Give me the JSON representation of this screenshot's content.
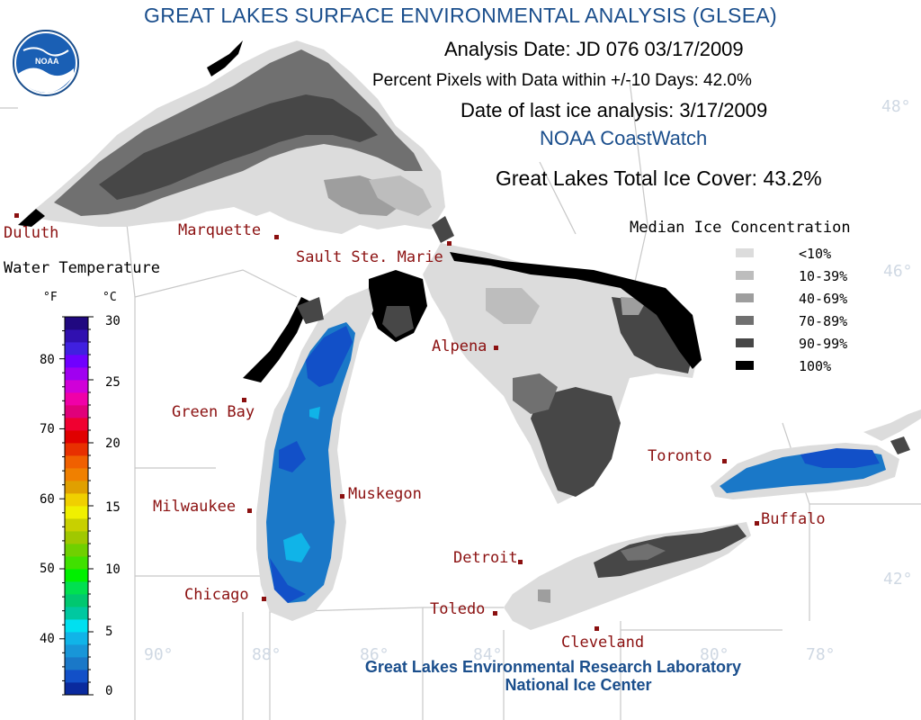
{
  "header": {
    "title": "GREAT LAKES SURFACE ENVIRONMENTAL ANALYSIS (GLSEA)",
    "analysis_date": "Analysis Date:  JD 076 03/17/2009",
    "percent_pixels": "Percent Pixels with Data within +/-10 Days:  42.0%",
    "last_ice_analysis": "Date of last ice analysis: 3/17/2009",
    "coastwatch": "NOAA CoastWatch",
    "total_ice_cover": "Great Lakes Total Ice Cover:  43.2%"
  },
  "logo": {
    "text": "NOAA"
  },
  "colors": {
    "title_blue": "#1a4e8c",
    "city_red": "#8b1010",
    "land": "#ffffff",
    "border": "#c8c8c8"
  },
  "ice_legend": {
    "title": "Median Ice Concentration",
    "entries": [
      {
        "label": "<10%",
        "color": "#dcdcdc"
      },
      {
        "label": "10-39%",
        "color": "#bdbdbd"
      },
      {
        "label": "40-69%",
        "color": "#9e9e9e"
      },
      {
        "label": "70-89%",
        "color": "#707070"
      },
      {
        "label": "90-99%",
        "color": "#474747"
      },
      {
        "label": "100%",
        "color": "#000000"
      }
    ]
  },
  "temperature_scale": {
    "title": "Water Temperature",
    "unit_f": "°F",
    "unit_c": "°C",
    "range_c": [
      0,
      30
    ],
    "fahrenheit_ticks": [
      "80",
      "70",
      "60",
      "50",
      "40"
    ],
    "celsius_ticks": [
      "30",
      "25",
      "20",
      "15",
      "10",
      "5",
      "0"
    ],
    "colors_bottom_to_top": [
      "#0a2a9e",
      "#1250c8",
      "#1a78c8",
      "#1896d8",
      "#10b4e8",
      "#00e0f0",
      "#00c8a0",
      "#00c870",
      "#00e050",
      "#00f000",
      "#40e000",
      "#70d000",
      "#a0c800",
      "#c8d000",
      "#f0f000",
      "#f0d000",
      "#e0a000",
      "#f08000",
      "#f06000",
      "#e83000",
      "#e00000",
      "#f00030",
      "#e0007a",
      "#f000a8",
      "#d000d8",
      "#a000f0",
      "#7000ff",
      "#4020e0",
      "#3010b0",
      "#200880"
    ]
  },
  "cities": [
    {
      "name": "Duluth"
    },
    {
      "name": "Marquette"
    },
    {
      "name": "Sault Ste. Marie"
    },
    {
      "name": "Alpena"
    },
    {
      "name": "Green Bay"
    },
    {
      "name": "Milwaukee"
    },
    {
      "name": "Muskegon"
    },
    {
      "name": "Chicago"
    },
    {
      "name": "Detroit"
    },
    {
      "name": "Toledo"
    },
    {
      "name": "Cleveland"
    },
    {
      "name": "Toronto"
    },
    {
      "name": "Buffalo"
    }
  ],
  "grid_labels": {
    "lat_48": "48°",
    "lat_46": "46°",
    "lat_42": "42°",
    "lon_90": "90°",
    "lon_88": "88°",
    "lon_86": "86°",
    "lon_84": "84°",
    "lon_80": "80°",
    "lon_78": "78°"
  },
  "footer": {
    "line1": "Great Lakes Environmental Research Laboratory",
    "line2": "National Ice Center"
  }
}
